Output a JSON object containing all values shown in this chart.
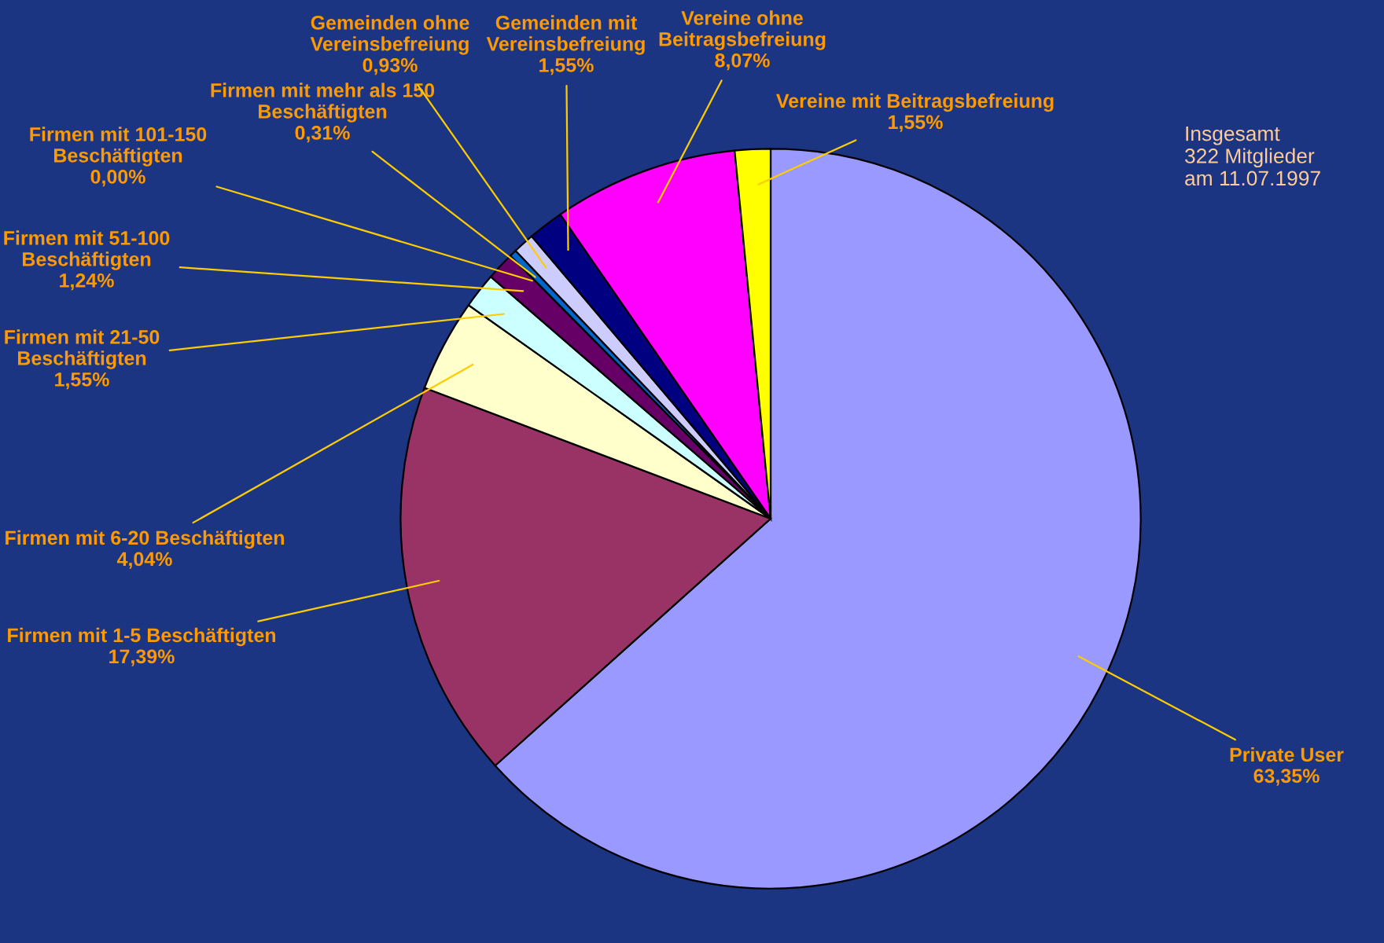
{
  "chart_data": {
    "type": "pie",
    "categories": [
      "Private User",
      "Firmen mit 1-5 Beschäftigten",
      "Firmen mit 6-20 Beschäftigten",
      "Firmen mit 21-50\nBeschäftigten",
      "Firmen mit 51-100\nBeschäftigten",
      "Firmen mit 101-150\nBeschäftigten",
      "Firmen mit mehr als 150\nBeschäftigten",
      "Gemeinden ohne\nVereinsbefreiung",
      "Gemeinden mit\nVereinsbefreiung",
      "Vereine ohne\nBeitragsbefreiung",
      "Vereine mit Beitragsbefreiung"
    ],
    "values": [
      63.35,
      17.39,
      4.04,
      1.55,
      1.24,
      0.0,
      0.31,
      0.93,
      1.55,
      8.07,
      1.55
    ],
    "value_labels": [
      "63,35%",
      "17,39%",
      "4,04%",
      "1,55%",
      "1,24%",
      "0,00%",
      "0,31%",
      "0,93%",
      "1,55%",
      "8,07%",
      "1,55%"
    ],
    "colors": [
      "#9999ff",
      "#993366",
      "#ffffcc",
      "#ccffff",
      "#660066",
      "#3366ff",
      "#0066cc",
      "#ccccff",
      "#000080",
      "#ff00ff",
      "#ffff00"
    ],
    "annotations": [
      "Insgesamt\n322 Mitglieder\nam 11.07.1997"
    ]
  }
}
